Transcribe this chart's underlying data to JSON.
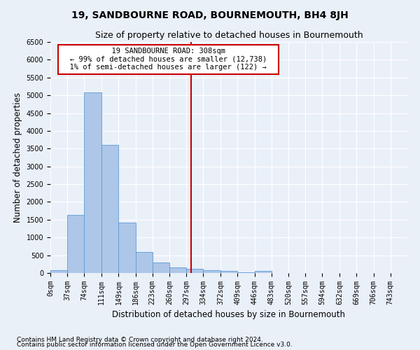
{
  "title": "19, SANDBOURNE ROAD, BOURNEMOUTH, BH4 8JH",
  "subtitle": "Size of property relative to detached houses in Bournemouth",
  "xlabel": "Distribution of detached houses by size in Bournemouth",
  "ylabel": "Number of detached properties",
  "footer_line1": "Contains HM Land Registry data © Crown copyright and database right 2024.",
  "footer_line2": "Contains public sector information licensed under the Open Government Licence v3.0.",
  "annotation_line1": "19 SANDBOURNE ROAD: 308sqm",
  "annotation_line2": "← 99% of detached houses are smaller (12,738)",
  "annotation_line3": "1% of semi-detached houses are larger (122) →",
  "property_size": 308,
  "bar_categories": [
    "0sqm",
    "37sqm",
    "74sqm",
    "111sqm",
    "149sqm",
    "186sqm",
    "223sqm",
    "260sqm",
    "297sqm",
    "334sqm",
    "372sqm",
    "409sqm",
    "446sqm",
    "483sqm",
    "520sqm",
    "557sqm",
    "594sqm",
    "632sqm",
    "669sqm",
    "706sqm",
    "743sqm"
  ],
  "bar_edges": [
    0,
    37,
    74,
    111,
    149,
    186,
    223,
    260,
    297,
    334,
    372,
    409,
    446,
    483,
    520,
    557,
    594,
    632,
    669,
    706,
    743
  ],
  "bar_values": [
    75,
    1640,
    5080,
    3600,
    1420,
    590,
    300,
    160,
    110,
    80,
    55,
    25,
    60,
    5,
    5,
    5,
    5,
    5,
    5,
    5,
    5
  ],
  "bar_color": "#aec6e8",
  "bar_edgecolor": "#5b9bd5",
  "vline_color": "#cc0000",
  "vline_x": 308,
  "ylim": [
    0,
    6500
  ],
  "yticks": [
    0,
    500,
    1000,
    1500,
    2000,
    2500,
    3000,
    3500,
    4000,
    4500,
    5000,
    5500,
    6000,
    6500
  ],
  "bg_color": "#eaf0f8",
  "grid_color": "#ffffff",
  "annotation_box_color": "#ffffff",
  "annotation_box_edgecolor": "#cc0000",
  "title_fontsize": 10,
  "subtitle_fontsize": 9,
  "axis_label_fontsize": 8.5,
  "tick_fontsize": 7,
  "annotation_fontsize": 7.5,
  "footer_fontsize": 6.5
}
